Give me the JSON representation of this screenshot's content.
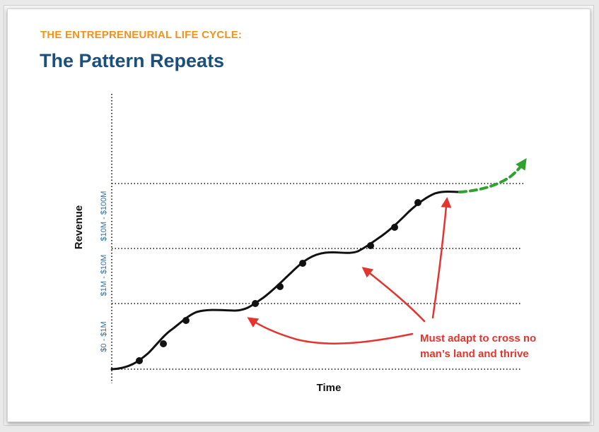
{
  "header": {
    "eyebrow": "THE ENTREPRENEURIAL LIFE CYCLE:",
    "title": "The Pattern Repeats"
  },
  "axes": {
    "y_label": "Revenue",
    "x_label": "Time"
  },
  "bands": [
    {
      "label": "$0 - $1M"
    },
    {
      "label": "$1M - $10M"
    },
    {
      "label": "$10M - $100M"
    }
  ],
  "annotation": {
    "line1": "Must adapt to cross no",
    "line2": "man’s land and thrive"
  },
  "colors": {
    "eyebrow": "#f0931c",
    "title": "#1c4f7a",
    "curve": "#111111",
    "future": "#2ea12e",
    "arrows": "#e3342f",
    "band_labels": "#2d6ea3"
  }
}
